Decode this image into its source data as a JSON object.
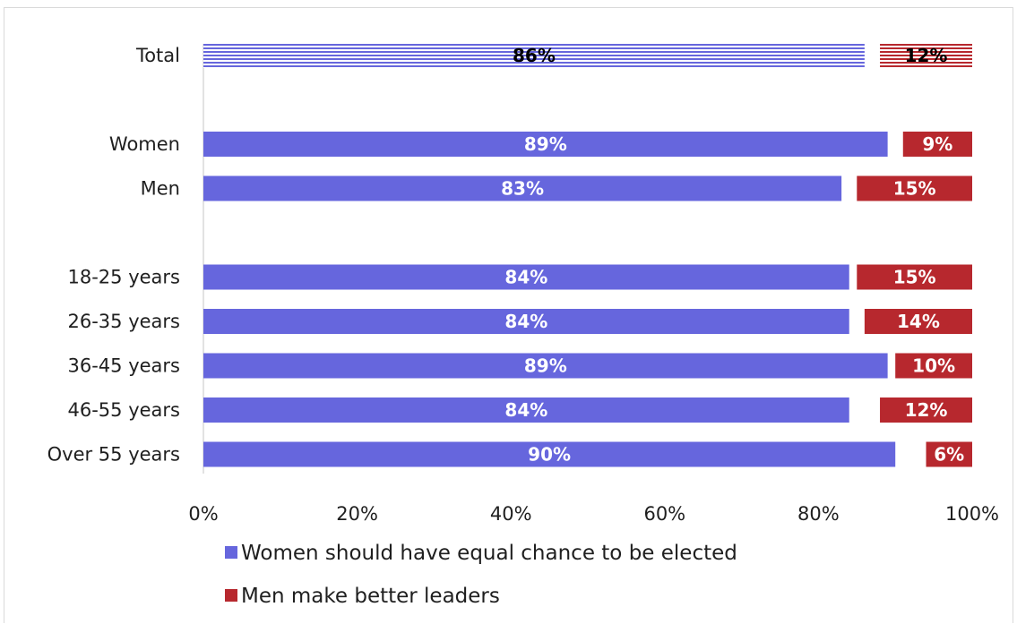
{
  "chart_data": {
    "type": "bar",
    "orientation": "horizontal",
    "stacked": true,
    "categories": [
      "Total",
      "Women",
      "Men",
      "18-25 years",
      "26-35 years",
      "36-45 years",
      "46-55 years",
      "Over 55 years"
    ],
    "groups": [
      [
        "Total"
      ],
      [
        "Women",
        "Men"
      ],
      [
        "18-25 years",
        "26-35 years",
        "36-45 years",
        "46-55 years",
        "Over 55 years"
      ]
    ],
    "series": [
      {
        "name": "Women should have equal chance to be elected",
        "color": "#6666dd",
        "values": [
          86,
          89,
          83,
          84,
          84,
          89,
          84,
          90
        ],
        "labels": [
          "86%",
          "89%",
          "83%",
          "84%",
          "84%",
          "89%",
          "84%",
          "90%"
        ]
      },
      {
        "name": "Men make better leaders",
        "color": "#b7282e",
        "values": [
          12,
          9,
          15,
          15,
          14,
          10,
          12,
          6
        ],
        "labels": [
          "12%",
          "9%",
          "15%",
          "15%",
          "14%",
          "10%",
          "12%",
          "6%"
        ]
      }
    ],
    "layout_note": "first series aligned to 0%, second series aligned to 100%",
    "highlighted_category": "Total",
    "highlight_style": "horizontal stripes",
    "xlim": [
      0,
      100
    ],
    "x_ticks": [
      "0%",
      "20%",
      "40%",
      "60%",
      "80%",
      "100%"
    ],
    "legend_position": "bottom",
    "grid": false
  }
}
